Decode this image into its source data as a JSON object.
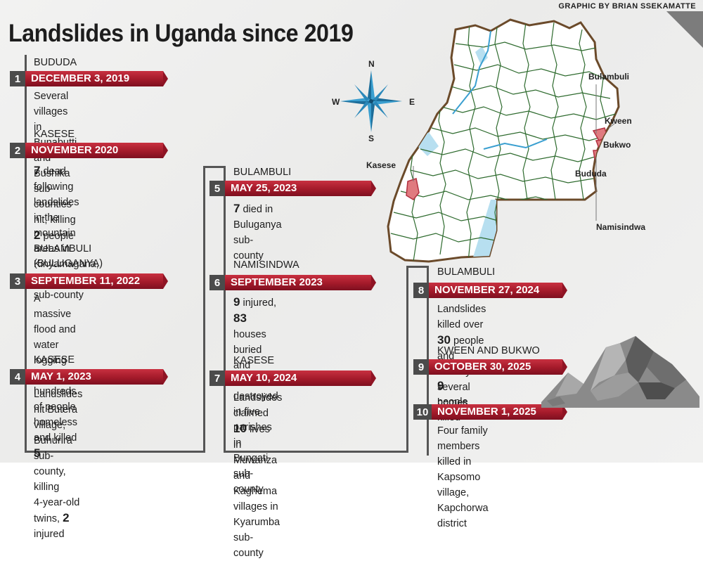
{
  "credit": "GRAPHIC BY BRIAN SSEKAMATTE",
  "title": "Landslides in Uganda since 2019",
  "colors": {
    "accent": "#a31a2a",
    "number_box": "#4b4b4b",
    "affected_district": "#e07a7f",
    "lake": "#b7dff0",
    "district_lines": "#2d6a2d"
  },
  "events": [
    {
      "num": "1",
      "location": "BUDUDA",
      "date": "DECEMBER 3, 2019",
      "desc": [
        [
          "Several villages in Bunabutti"
        ],
        [
          "and Bushika sub-counties hit, killing ",
          {
            "b": "2"
          },
          " people"
        ]
      ]
    },
    {
      "num": "2",
      "location": "KASESE",
      "date": "NOVEMBER 2020",
      "desc": [
        [
          {
            "b": "7"
          },
          " dead following landslides"
        ],
        [
          "in the mountain areas in"
        ],
        [
          "Kinyamagana, Bwesumbu"
        ],
        [
          "sub-county"
        ]
      ]
    },
    {
      "num": "3",
      "location": "BULAMBULI",
      "location2": "(BULUGANYA)",
      "date": "SEPTEMBER 11, 2022",
      "desc": [
        [
          "A massive flood and water"
        ],
        [
          "logging left hundreds of people"
        ],
        [
          "homeless and killed ",
          {
            "b": "5"
          }
        ]
      ]
    },
    {
      "num": "4",
      "location": "KASESE",
      "date": "MAY 1, 2023",
      "desc": [
        [
          "Landslides hit Butera village,"
        ],
        [
          "Buhurira sub-county, killing"
        ],
        [
          "4-year-old twins, ",
          {
            "b": "2"
          },
          " injured"
        ]
      ]
    },
    {
      "num": "5",
      "location": "BULAMBULI",
      "date": "MAY 25, 2023",
      "desc": [
        [
          {
            "b": "7"
          },
          " died in Buluganya"
        ],
        [
          "sub-county"
        ]
      ]
    },
    {
      "num": "6",
      "location": "NAMISINDWA",
      "date": "SEPTEMBER 2023",
      "desc": [
        [
          {
            "b": "9"
          },
          " injured, ",
          {
            "b": "83"
          },
          " houses buried and"
        ],
        [
          "crops destroyed in five parishes"
        ],
        [
          "in Bungati sub-county"
        ]
      ]
    },
    {
      "num": "7",
      "location": "KASESE",
      "date": "MAY 10, 2024",
      "desc": [
        [
          "Landslides claimed ",
          {
            "b": "10"
          },
          " lives"
        ],
        [
          "in Muwanza and Kaghema"
        ],
        [
          "villages in Kyarumba sub-county"
        ]
      ]
    },
    {
      "num": "8",
      "location": "BULAMBULI",
      "date": "NOVEMBER 27, 2024",
      "desc": [
        [
          "Landslides killed over ",
          {
            "b": "30"
          },
          " people"
        ],
        [
          "and destroyed several homes"
        ]
      ]
    },
    {
      "num": "9",
      "location": "KWEEN AND BUKWO",
      "date": "OCTOBER 30, 2025",
      "desc": [
        [
          {
            "b": "9"
          },
          " people killed"
        ]
      ]
    },
    {
      "num": "10",
      "date": "NOVEMBER 1, 2025",
      "desc": [
        [
          "Four family members killed in"
        ],
        [
          "Kapsomo village,  Kapchorwa district"
        ]
      ]
    }
  ],
  "map": {
    "labels": {
      "bulambuli": "Bulambuli",
      "kween": "Kween",
      "bukwo": "Bukwo",
      "bududa": "Bududa",
      "namisindwa": "Namisindwa",
      "kasese": "Kasese"
    }
  },
  "compass": {
    "n": "N",
    "s": "S",
    "e": "E",
    "w": "W"
  }
}
